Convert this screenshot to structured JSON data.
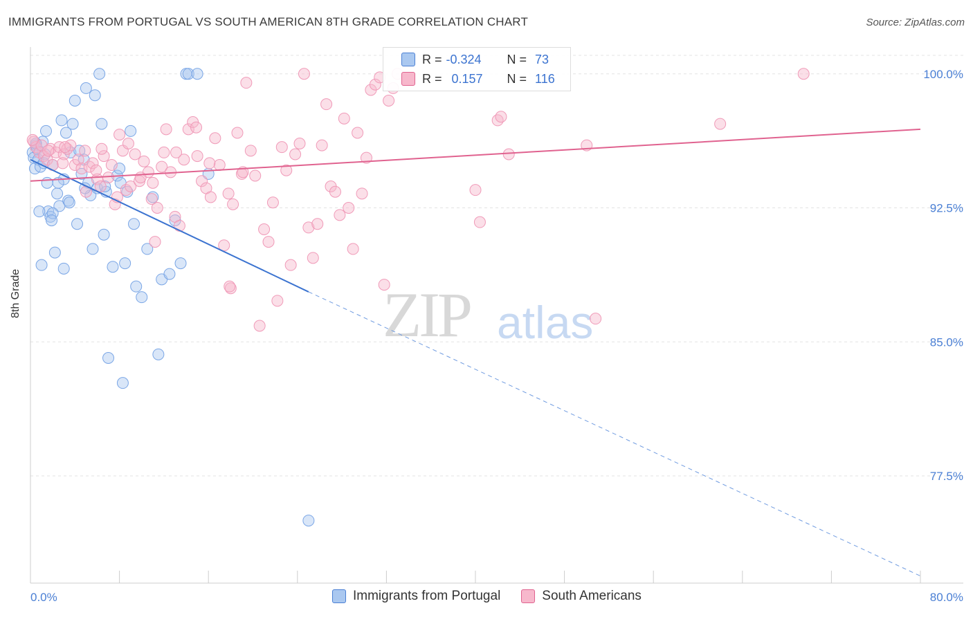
{
  "header": {
    "title": "IMMIGRANTS FROM PORTUGAL VS SOUTH AMERICAN 8TH GRADE CORRELATION CHART",
    "source": "Source: ZipAtlas.com"
  },
  "watermark": {
    "zip": "ZIP",
    "atlas": "atlas"
  },
  "legend_top": {
    "rows": [
      {
        "r_label": "R =",
        "r_value": "-0.324",
        "n_label": "N =",
        "n_value": "73",
        "color": "#aac8f0"
      },
      {
        "r_label": "R =",
        "r_value": "0.157",
        "n_label": "N =",
        "n_value": "116",
        "color": "#f7b8cc"
      }
    ]
  },
  "legend_bottom": [
    {
      "label": "Immigrants from Portugal",
      "color": "#aac8f0"
    },
    {
      "label": "South Americans",
      "color": "#f7b8cc"
    }
  ],
  "chart_data": {
    "type": "scatter",
    "title": "IMMIGRANTS FROM PORTUGAL VS SOUTH AMERICAN 8TH GRADE CORRELATION CHART",
    "xlabel": "",
    "ylabel": "8th Grade",
    "xlim": [
      0,
      80
    ],
    "ylim": [
      71.5,
      101.5
    ],
    "x_tick_labels": [
      "0.0%",
      "80.0%"
    ],
    "y_ticks": [
      77.5,
      85.0,
      92.5,
      100.0
    ],
    "y_tick_labels": [
      "77.5%",
      "85.0%",
      "92.5%",
      "100.0%"
    ],
    "grid": true,
    "colors": {
      "blue": "#4a7fd4",
      "blue_fill": "#aac8f0",
      "pink": "#e0628f",
      "pink_fill": "#f7b8cc"
    },
    "series": [
      {
        "name": "Immigrants from Portugal",
        "color": "#4a7fd4",
        "trend": {
          "x": [
            0,
            25
          ],
          "y": [
            95.2,
            87.8
          ],
          "dashed_to": [
            80,
            71.9
          ]
        },
        "points": [
          [
            0.2,
            95.6
          ],
          [
            0.3,
            95.3
          ],
          [
            0.4,
            94.7
          ],
          [
            0.5,
            96.0
          ],
          [
            0.6,
            95.8
          ],
          [
            0.7,
            95.2
          ],
          [
            0.9,
            94.8
          ],
          [
            1.1,
            96.2
          ],
          [
            1.3,
            95.5
          ],
          [
            1.4,
            96.8
          ],
          [
            1.5,
            93.9
          ],
          [
            1.6,
            92.3
          ],
          [
            1.8,
            92.0
          ],
          [
            2.0,
            94.9
          ],
          [
            2.2,
            90.0
          ],
          [
            2.4,
            93.3
          ],
          [
            2.6,
            92.6
          ],
          [
            2.8,
            97.4
          ],
          [
            3.0,
            94.1
          ],
          [
            3.2,
            96.7
          ],
          [
            3.4,
            92.9
          ],
          [
            3.6,
            95.6
          ],
          [
            3.8,
            97.2
          ],
          [
            4.0,
            98.5
          ],
          [
            4.2,
            91.6
          ],
          [
            4.4,
            95.7
          ],
          [
            4.6,
            94.4
          ],
          [
            5.0,
            99.2
          ],
          [
            5.2,
            93.9
          ],
          [
            5.4,
            93.2
          ],
          [
            5.6,
            90.2
          ],
          [
            5.8,
            98.8
          ],
          [
            6.0,
            93.6
          ],
          [
            6.2,
            100.0
          ],
          [
            6.4,
            97.2
          ],
          [
            6.6,
            91.0
          ],
          [
            6.8,
            93.4
          ],
          [
            7.0,
            84.1
          ],
          [
            7.4,
            89.2
          ],
          [
            7.8,
            94.3
          ],
          [
            8.0,
            94.7
          ],
          [
            8.3,
            82.7
          ],
          [
            8.5,
            89.4
          ],
          [
            8.7,
            93.4
          ],
          [
            9.0,
            96.8
          ],
          [
            9.3,
            91.6
          ],
          [
            9.5,
            88.1
          ],
          [
            10.0,
            87.5
          ],
          [
            10.5,
            90.2
          ],
          [
            11.0,
            93.1
          ],
          [
            11.5,
            84.3
          ],
          [
            11.8,
            88.5
          ],
          [
            12.5,
            88.8
          ],
          [
            13.0,
            91.8
          ],
          [
            13.5,
            89.4
          ],
          [
            14.0,
            100.0
          ],
          [
            14.2,
            100.0
          ],
          [
            15.0,
            100.0
          ],
          [
            16.0,
            94.4
          ],
          [
            25.0,
            75.0
          ],
          [
            1.0,
            89.3
          ],
          [
            2.0,
            92.2
          ],
          [
            3.0,
            89.1
          ],
          [
            0.8,
            92.3
          ],
          [
            1.9,
            91.8
          ],
          [
            4.8,
            95.2
          ],
          [
            6.7,
            93.7
          ],
          [
            8.1,
            93.9
          ],
          [
            2.5,
            93.9
          ],
          [
            0.5,
            96.1
          ],
          [
            1.2,
            95.0
          ],
          [
            3.5,
            92.8
          ],
          [
            4.9,
            93.6
          ]
        ]
      },
      {
        "name": "South Americans",
        "color": "#e0628f",
        "trend": {
          "x": [
            0,
            80
          ],
          "y": [
            94.0,
            96.9
          ]
        },
        "points": [
          [
            0.3,
            96.2
          ],
          [
            0.5,
            95.9
          ],
          [
            0.8,
            95.6
          ],
          [
            1.0,
            96.0
          ],
          [
            1.2,
            95.4
          ],
          [
            1.5,
            95.2
          ],
          [
            1.8,
            95.8
          ],
          [
            2.0,
            94.9
          ],
          [
            2.3,
            95.6
          ],
          [
            2.6,
            95.9
          ],
          [
            3.0,
            95.5
          ],
          [
            3.3,
            95.8
          ],
          [
            3.6,
            96.0
          ],
          [
            4.0,
            94.9
          ],
          [
            4.3,
            95.2
          ],
          [
            4.6,
            94.7
          ],
          [
            5.0,
            93.4
          ],
          [
            5.3,
            94.8
          ],
          [
            5.6,
            95.0
          ],
          [
            6.0,
            94.1
          ],
          [
            6.3,
            93.7
          ],
          [
            6.6,
            95.4
          ],
          [
            7.0,
            94.2
          ],
          [
            7.3,
            94.9
          ],
          [
            7.6,
            92.7
          ],
          [
            8.0,
            96.6
          ],
          [
            8.3,
            95.7
          ],
          [
            8.6,
            93.5
          ],
          [
            9.0,
            93.7
          ],
          [
            9.4,
            95.5
          ],
          [
            9.8,
            94.0
          ],
          [
            10.2,
            95.1
          ],
          [
            10.6,
            94.5
          ],
          [
            11.0,
            93.9
          ],
          [
            11.4,
            92.5
          ],
          [
            11.8,
            94.8
          ],
          [
            12.2,
            96.9
          ],
          [
            12.6,
            94.5
          ],
          [
            13.0,
            92.0
          ],
          [
            13.4,
            91.5
          ],
          [
            13.8,
            95.2
          ],
          [
            14.2,
            96.9
          ],
          [
            14.6,
            97.3
          ],
          [
            15.0,
            95.4
          ],
          [
            15.4,
            94.0
          ],
          [
            15.8,
            93.6
          ],
          [
            16.2,
            93.1
          ],
          [
            16.6,
            96.4
          ],
          [
            17.0,
            94.9
          ],
          [
            17.4,
            90.4
          ],
          [
            17.8,
            93.3
          ],
          [
            18.2,
            92.7
          ],
          [
            18.6,
            96.7
          ],
          [
            19.0,
            94.4
          ],
          [
            19.4,
            99.5
          ],
          [
            19.8,
            95.7
          ],
          [
            20.2,
            94.3
          ],
          [
            20.6,
            85.9
          ],
          [
            21.0,
            91.3
          ],
          [
            21.4,
            90.6
          ],
          [
            21.8,
            92.8
          ],
          [
            22.2,
            87.3
          ],
          [
            22.6,
            95.9
          ],
          [
            23.0,
            94.6
          ],
          [
            23.4,
            89.3
          ],
          [
            23.8,
            95.5
          ],
          [
            24.2,
            96.1
          ],
          [
            24.6,
            100.0
          ],
          [
            25.0,
            91.4
          ],
          [
            25.4,
            89.7
          ],
          [
            25.8,
            91.6
          ],
          [
            26.2,
            96.0
          ],
          [
            26.6,
            98.3
          ],
          [
            27.0,
            93.7
          ],
          [
            27.4,
            93.4
          ],
          [
            27.8,
            92.1
          ],
          [
            28.2,
            97.5
          ],
          [
            28.6,
            92.5
          ],
          [
            29.0,
            90.2
          ],
          [
            29.4,
            96.7
          ],
          [
            29.8,
            93.3
          ],
          [
            30.2,
            95.3
          ],
          [
            30.6,
            99.1
          ],
          [
            31.0,
            99.4
          ],
          [
            31.4,
            99.8
          ],
          [
            31.8,
            88.2
          ],
          [
            32.2,
            98.5
          ],
          [
            32.6,
            99.2
          ],
          [
            33.0,
            100.0
          ],
          [
            40.0,
            93.5
          ],
          [
            40.4,
            91.7
          ],
          [
            42.0,
            97.4
          ],
          [
            42.3,
            97.6
          ],
          [
            43.0,
            95.5
          ],
          [
            50.0,
            96.0
          ],
          [
            50.8,
            86.3
          ],
          [
            62.0,
            97.2
          ],
          [
            69.5,
            100.0
          ],
          [
            18.0,
            88.0
          ],
          [
            17.9,
            88.1
          ],
          [
            19.1,
            94.5
          ],
          [
            13.1,
            95.6
          ],
          [
            11.2,
            90.6
          ],
          [
            8.8,
            96.1
          ],
          [
            6.4,
            95.8
          ],
          [
            4.9,
            95.7
          ],
          [
            3.1,
            95.9
          ],
          [
            1.6,
            95.7
          ],
          [
            0.2,
            96.3
          ],
          [
            2.9,
            95.0
          ],
          [
            5.9,
            94.6
          ],
          [
            7.8,
            93.1
          ],
          [
            9.9,
            94.2
          ],
          [
            14.9,
            97.0
          ],
          [
            16.1,
            95.0
          ],
          [
            12.0,
            95.6
          ],
          [
            10.9,
            93.0
          ]
        ]
      }
    ]
  }
}
